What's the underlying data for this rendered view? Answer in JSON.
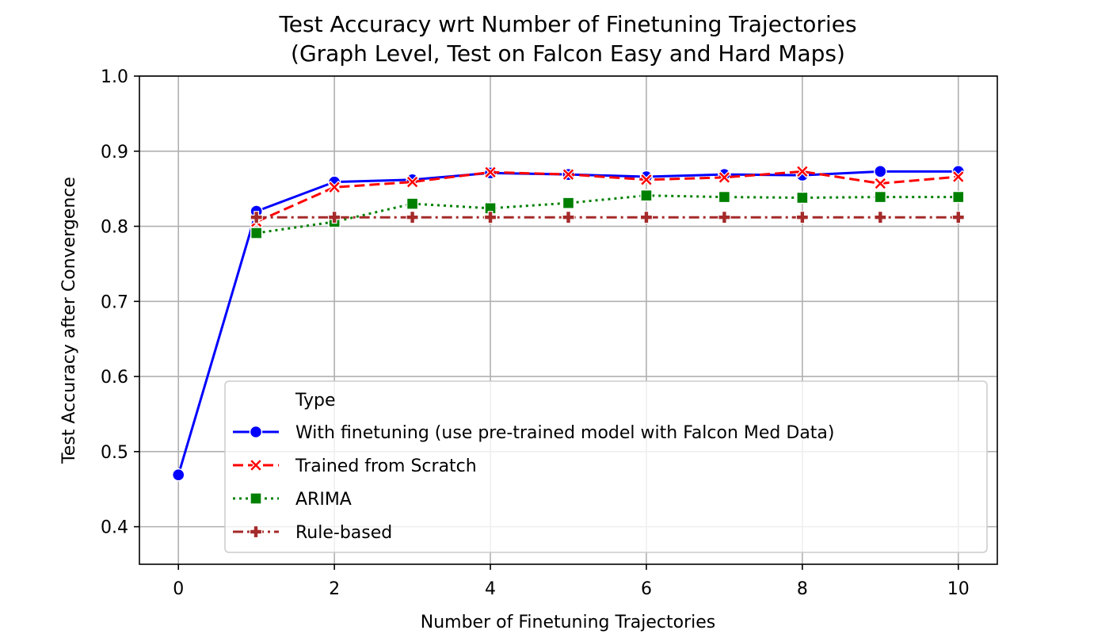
{
  "chart_data": {
    "type": "line",
    "title": "Test Accuracy wrt Number of Finetuning Trajectories",
    "subtitle": "(Graph Level, Test on Falcon Easy and Hard Maps)",
    "xlabel": "Number of Finetuning Trajectories",
    "ylabel": "Test Accuracy after Convergence",
    "xlim": [
      -0.5,
      10.5
    ],
    "ylim": [
      0.35,
      1.0
    ],
    "xticks": [
      0,
      2,
      4,
      6,
      8,
      10
    ],
    "yticks": [
      0.4,
      0.5,
      0.6,
      0.7,
      0.8,
      0.9,
      1.0
    ],
    "xtick_labels": [
      "0",
      "2",
      "4",
      "6",
      "8",
      "10"
    ],
    "ytick_labels": [
      "0.4",
      "0.5",
      "0.6",
      "0.7",
      "0.8",
      "0.9",
      "1.0"
    ],
    "grid": true,
    "legend": {
      "title": "Type",
      "placement": "lower-right"
    },
    "series": [
      {
        "name": "With finetuning (use pre-trained model with Falcon Med Data)",
        "color": "#0000ff",
        "line_style": "solid",
        "marker": "circle",
        "x": [
          0,
          1,
          2,
          3,
          4,
          5,
          6,
          7,
          8,
          9,
          10
        ],
        "y": [
          0.469,
          0.82,
          0.859,
          0.862,
          0.871,
          0.869,
          0.866,
          0.869,
          0.868,
          0.873,
          0.873
        ]
      },
      {
        "name": "Trained from Scratch",
        "color": "#ff0000",
        "line_style": "dashed",
        "marker": "x",
        "x": [
          1,
          2,
          3,
          4,
          5,
          6,
          7,
          8,
          9,
          10
        ],
        "y": [
          0.806,
          0.852,
          0.859,
          0.872,
          0.869,
          0.862,
          0.865,
          0.873,
          0.857,
          0.866
        ]
      },
      {
        "name": "ARIMA",
        "color": "#008000",
        "line_style": "dotted",
        "marker": "square",
        "x": [
          1,
          2,
          3,
          4,
          5,
          6,
          7,
          8,
          9,
          10
        ],
        "y": [
          0.791,
          0.806,
          0.83,
          0.824,
          0.831,
          0.841,
          0.839,
          0.838,
          0.839,
          0.839
        ]
      },
      {
        "name": "Rule-based",
        "color": "#a52a2a",
        "line_style": "dashdot",
        "marker": "plus",
        "x": [
          1,
          2,
          3,
          4,
          5,
          6,
          7,
          8,
          9,
          10
        ],
        "y": [
          0.812,
          0.812,
          0.812,
          0.812,
          0.812,
          0.812,
          0.812,
          0.812,
          0.812,
          0.812
        ]
      }
    ]
  }
}
